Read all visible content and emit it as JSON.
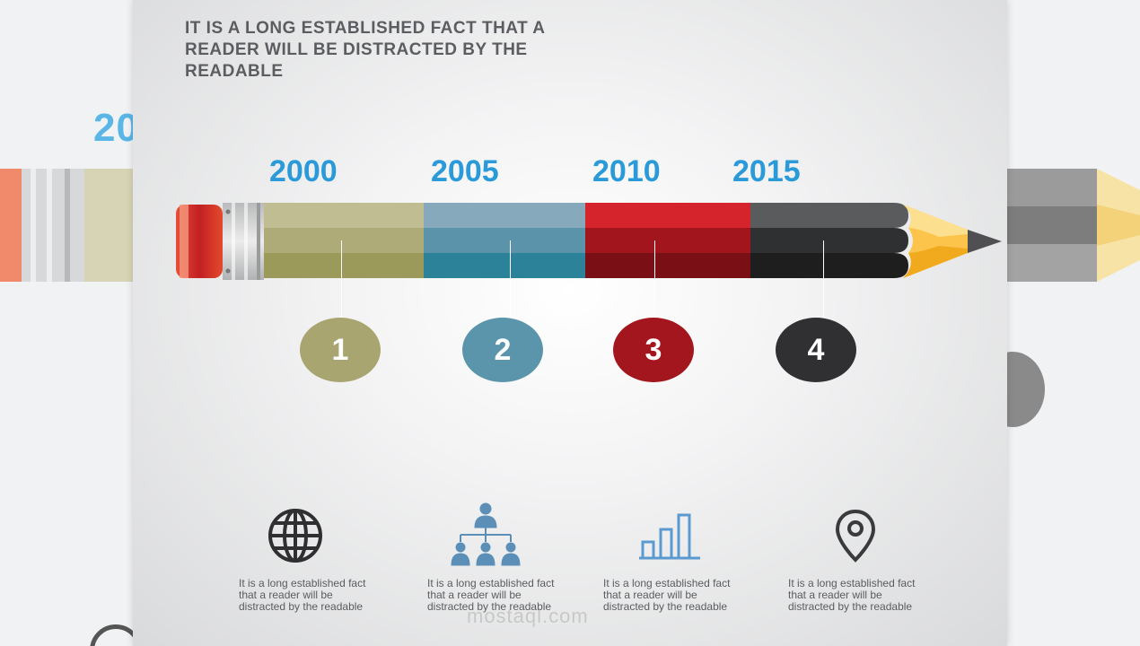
{
  "headline": "IT IS A LONG ESTABLISHED FACT THAT A READER WILL BE DISTRACTED BY THE READABLE",
  "background_year_fragment": "20",
  "watermark": "mostaql.com",
  "timeline": [
    {
      "year": "2000",
      "number": "1",
      "color": "#a8a571",
      "description": "It is a long established fact that a reader will be distracted by the readable",
      "icon": "globe-icon"
    },
    {
      "year": "2005",
      "number": "2",
      "color": "#5b95ab",
      "description": "It is a long established fact that a reader will be distracted by the readable",
      "icon": "org-chart-icon"
    },
    {
      "year": "2010",
      "number": "3",
      "color": "#a3161e",
      "description": "It is a long established fact that a reader will be distracted by the readable",
      "icon": "bar-chart-icon"
    },
    {
      "year": "2015",
      "number": "4",
      "color": "#303033",
      "description": "It is a long established fact that a reader will be distracted by the readable",
      "icon": "location-pin-icon"
    }
  ],
  "colors": {
    "year_text": "#2b9ad8",
    "headline_text": "#5b5d60",
    "icon_dark": "#2f2f31",
    "icon_blue": "#5b8fb7",
    "pencil_tip": "#fcc44b"
  }
}
